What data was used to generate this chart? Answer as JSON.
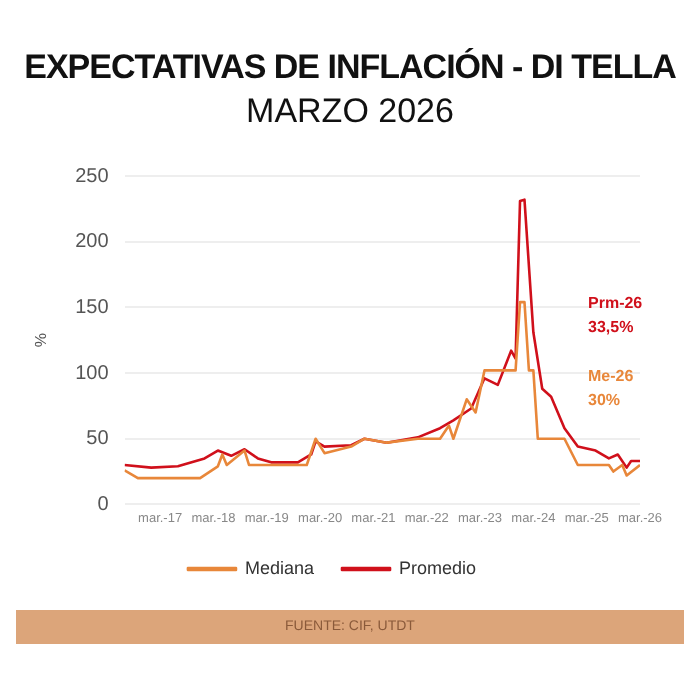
{
  "chart_data": {
    "type": "line",
    "title": "EXPECTATIVAS DE INFLACIÓN - DI TELLA",
    "subtitle": "MARZO 2026",
    "ylabel": "%",
    "series": [
      {
        "name": "Mediana",
        "color": "#e8873a",
        "x": [
          "2016-07",
          "2016-10",
          "2017-06",
          "2017-12",
          "2018-04",
          "2018-05",
          "2018-06",
          "2018-10",
          "2018-11",
          "2019-12",
          "2020-02",
          "2020-04",
          "2020-10",
          "2021-01",
          "2021-06",
          "2022-01",
          "2022-06",
          "2022-08",
          "2022-09",
          "2022-12",
          "2023-02",
          "2023-04",
          "2023-11",
          "2023-12",
          "2024-01",
          "2024-02",
          "2024-03",
          "2024-04",
          "2024-10",
          "2025-01",
          "2025-08",
          "2025-09",
          "2025-11",
          "2025-12",
          "2026-03"
        ],
        "values": [
          26,
          20,
          20,
          20,
          29,
          38,
          30,
          41,
          30,
          30,
          50,
          39,
          44,
          50,
          47,
          50,
          50,
          60,
          50,
          80,
          70,
          102,
          102,
          154,
          154,
          102,
          102,
          50,
          50,
          30,
          30,
          25,
          30,
          22,
          30
        ]
      },
      {
        "name": "Promedio",
        "color": "#d0101b",
        "x": [
          "2016-07",
          "2017-01",
          "2017-07",
          "2018-01",
          "2018-04",
          "2018-07",
          "2018-10",
          "2019-01",
          "2019-04",
          "2019-10",
          "2020-01",
          "2020-02",
          "2020-04",
          "2020-10",
          "2021-01",
          "2021-06",
          "2022-01",
          "2022-06",
          "2022-09",
          "2023-01",
          "2023-04",
          "2023-07",
          "2023-10",
          "2023-11",
          "2023-12",
          "2024-01",
          "2024-03",
          "2024-05",
          "2024-07",
          "2024-10",
          "2025-01",
          "2025-05",
          "2025-08",
          "2025-10",
          "2025-12",
          "2026-01",
          "2026-03"
        ],
        "values": [
          30,
          28,
          29,
          35,
          41,
          37,
          42,
          35,
          32,
          32,
          38,
          48,
          44,
          45,
          50,
          47,
          51,
          58,
          64,
          73,
          96,
          91,
          117,
          111,
          231,
          232,
          131,
          88,
          82,
          58,
          44,
          41,
          35,
          38,
          28,
          33,
          33
        ]
      }
    ],
    "xlim": [
      "2016-07",
      "2026-03"
    ],
    "xticks": [
      {
        "value": "2017-03",
        "label": "mar.-17"
      },
      {
        "value": "2018-03",
        "label": "mar.-18"
      },
      {
        "value": "2019-03",
        "label": "mar.-19"
      },
      {
        "value": "2020-03",
        "label": "mar.-20"
      },
      {
        "value": "2021-03",
        "label": "mar.-21"
      },
      {
        "value": "2022-03",
        "label": "mar.-22"
      },
      {
        "value": "2023-03",
        "label": "mar.-23"
      },
      {
        "value": "2024-03",
        "label": "mar.-24"
      },
      {
        "value": "2025-03",
        "label": "mar.-25"
      },
      {
        "value": "2026-03",
        "label": "mar.-26"
      }
    ],
    "ylim": [
      0,
      250
    ],
    "yticks": [
      0,
      50,
      100,
      150,
      200,
      250
    ],
    "grid": "y",
    "legend": "bottom",
    "marker": "none",
    "line_style": "solid",
    "annotations": [
      "Prm-26\n33,5%",
      "Me-26\n30%",
      "FUENTE: CIF, UTDT"
    ]
  }
}
